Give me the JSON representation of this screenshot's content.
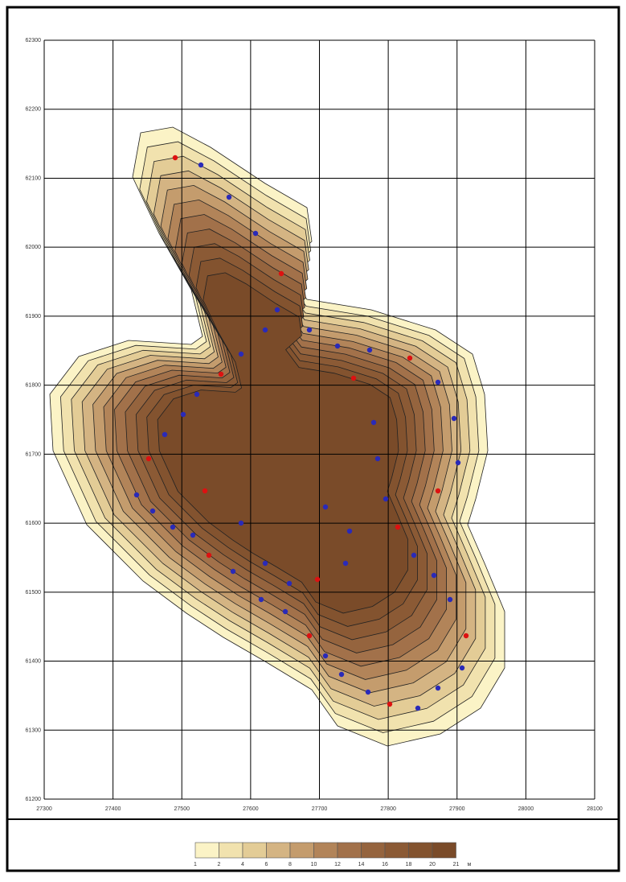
{
  "map": {
    "x_ticks": [
      27300,
      27400,
      27500,
      27600,
      27700,
      27800,
      27900,
      28000,
      28100
    ],
    "y_ticks": [
      62300,
      62200,
      62100,
      62000,
      61900,
      61800,
      61700,
      61600,
      61500,
      61400,
      61300,
      61200
    ]
  },
  "legend": {
    "levels": [
      1,
      2,
      4,
      6,
      8,
      10,
      12,
      14,
      16,
      18,
      20,
      21
    ],
    "unit": "м",
    "colors": [
      "#fbf3c6",
      "#f1e2ae",
      "#e3cc96",
      "#d4b483",
      "#c49c6d",
      "#b28459",
      "#a2714a",
      "#95643e",
      "#8b5a35",
      "#83532f",
      "#7a4b29"
    ]
  }
}
